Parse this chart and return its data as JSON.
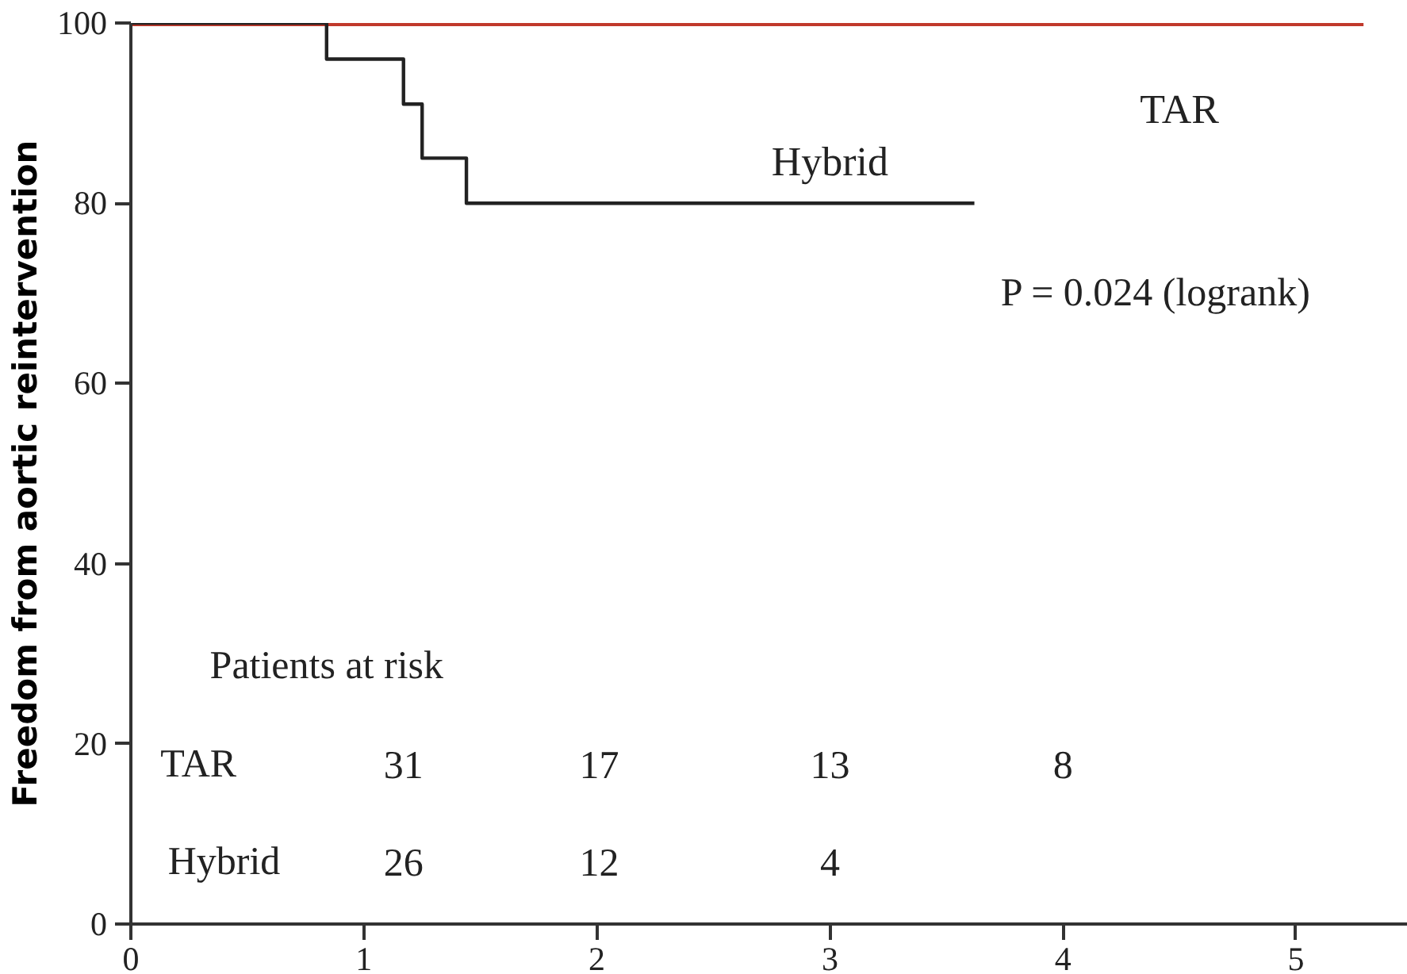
{
  "chart_data": {
    "type": "step",
    "ylabel": "Freedom from aortic reintervention",
    "xlim": [
      0,
      5.48
    ],
    "ylim": [
      0,
      100
    ],
    "xticks": [
      0,
      1,
      2,
      3,
      4,
      5
    ],
    "yticks": [
      0,
      20,
      40,
      60,
      80,
      100
    ],
    "grid": false,
    "legend": false,
    "series": [
      {
        "name": "TAR",
        "color": "#c0392b",
        "x": [
          0,
          5.29
        ],
        "values": [
          100,
          100
        ]
      },
      {
        "name": "Hybrid",
        "color": "#222222",
        "x": [
          0,
          0.84,
          1.17,
          1.25,
          1.44,
          3.62
        ],
        "values": [
          100,
          96,
          91,
          85,
          80,
          80
        ]
      }
    ],
    "annotations": [
      "P = 0.024 (logrank)",
      "Patients at risk",
      "TAR",
      "31",
      "17",
      "13",
      "8",
      "Hybrid",
      "26",
      "12",
      "4"
    ]
  }
}
